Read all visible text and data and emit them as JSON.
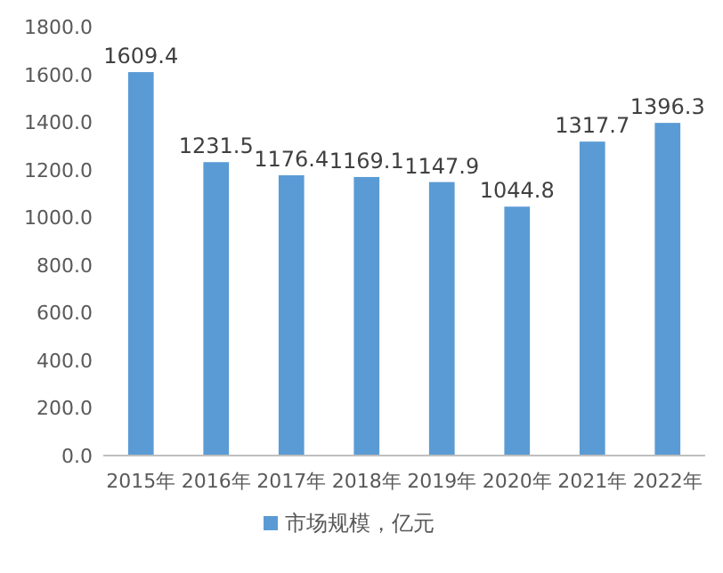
{
  "chart_data": {
    "type": "bar",
    "categories": [
      "2015年",
      "2016年",
      "2017年",
      "2018年",
      "2019年",
      "2020年",
      "2021年",
      "2022年"
    ],
    "series": [
      {
        "name": "市场规模，亿元",
        "color": "#5b9bd5",
        "values": [
          1609.4,
          1231.5,
          1176.4,
          1169.1,
          1147.9,
          1044.8,
          1317.7,
          1396.3
        ]
      }
    ],
    "ylim": [
      0,
      1800
    ],
    "yticks": [
      {
        "value": 0,
        "label": "0.0"
      },
      {
        "value": 200,
        "label": "200.0"
      },
      {
        "value": 400,
        "label": "400.0"
      },
      {
        "value": 600,
        "label": "600.0"
      },
      {
        "value": 800,
        "label": "800.0"
      },
      {
        "value": 1000,
        "label": "1000.0"
      },
      {
        "value": 1200,
        "label": "1200.0"
      },
      {
        "value": 1400,
        "label": "1400.0"
      },
      {
        "value": 1600,
        "label": "1600.0"
      },
      {
        "value": 1800,
        "label": "1800.0"
      }
    ],
    "data_labels": true,
    "legend": "bottom"
  }
}
